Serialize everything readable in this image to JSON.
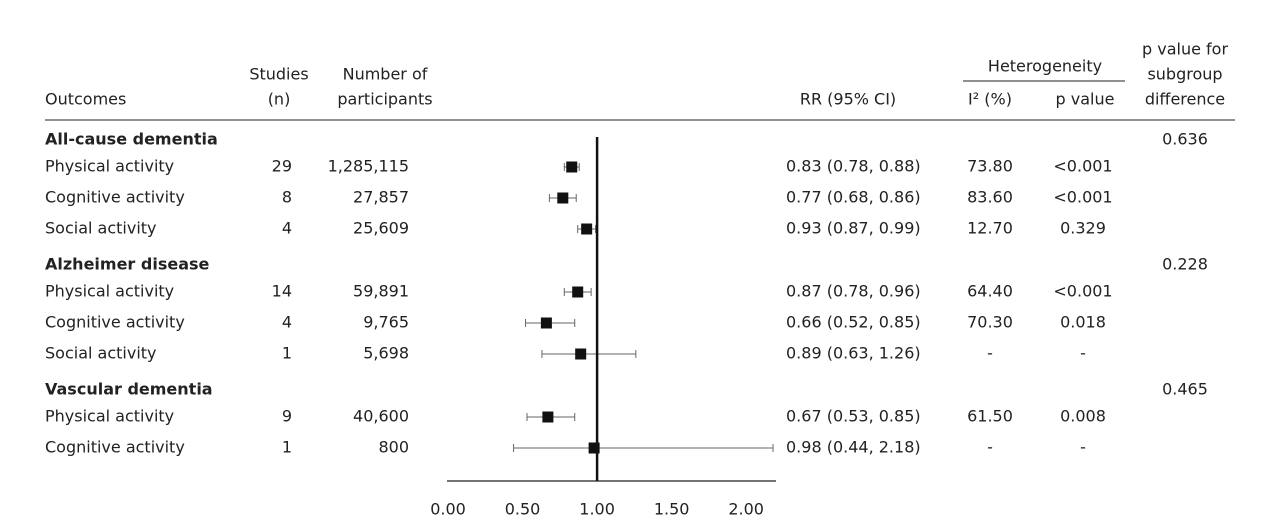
{
  "chart_data": {
    "type": "forest",
    "headers": {
      "outcomes": "Outcomes",
      "studies": [
        "Studies",
        "(n)"
      ],
      "participants": [
        "Number of",
        "participants"
      ],
      "rr": "RR (95% CI)",
      "heterogeneity": "Heterogeneity",
      "i2": "I² (%)",
      "p": "p value",
      "subgroup": [
        "p value for",
        "subgroup",
        "difference"
      ]
    },
    "groups": [
      {
        "name": "All-cause dementia",
        "p_subgroup": "0.636",
        "rows": [
          {
            "label": "Physical activity",
            "studies": 29,
            "participants": "1,285,115",
            "rr": 0.83,
            "ci": [
              0.78,
              0.88
            ],
            "rr_label": "0.83 (0.78, 0.88)",
            "i2": "73.80",
            "p": "<0.001"
          },
          {
            "label": "Cognitive activity",
            "studies": 8,
            "participants": "27,857",
            "rr": 0.77,
            "ci": [
              0.68,
              0.86
            ],
            "rr_label": "0.77 (0.68, 0.86)",
            "i2": "83.60",
            "p": "<0.001"
          },
          {
            "label": "Social activity",
            "studies": 4,
            "participants": "25,609",
            "rr": 0.93,
            "ci": [
              0.87,
              0.99
            ],
            "rr_label": "0.93 (0.87, 0.99)",
            "i2": "12.70",
            "p": "0.329"
          }
        ]
      },
      {
        "name": "Alzheimer disease",
        "p_subgroup": "0.228",
        "rows": [
          {
            "label": "Physical activity",
            "studies": 14,
            "participants": "59,891",
            "rr": 0.87,
            "ci": [
              0.78,
              0.96
            ],
            "rr_label": "0.87 (0.78, 0.96)",
            "i2": "64.40",
            "p": "<0.001"
          },
          {
            "label": "Cognitive activity",
            "studies": 4,
            "participants": "9,765",
            "rr": 0.66,
            "ci": [
              0.52,
              0.85
            ],
            "rr_label": "0.66 (0.52, 0.85)",
            "i2": "70.30",
            "p": "0.018"
          },
          {
            "label": "Social activity",
            "studies": 1,
            "participants": "5,698",
            "rr": 0.89,
            "ci": [
              0.63,
              1.26
            ],
            "rr_label": "0.89 (0.63, 1.26)",
            "i2": "-",
            "p": "-"
          }
        ]
      },
      {
        "name": "Vascular dementia",
        "p_subgroup": "0.465",
        "rows": [
          {
            "label": "Physical activity",
            "studies": 9,
            "participants": "40,600",
            "rr": 0.67,
            "ci": [
              0.53,
              0.85
            ],
            "rr_label": "0.67 (0.53, 0.85)",
            "i2": "61.50",
            "p": "0.008"
          },
          {
            "label": "Cognitive activity",
            "studies": 1,
            "participants": "800",
            "rr": 0.98,
            "ci": [
              0.44,
              2.18
            ],
            "rr_label": "0.98 (0.44, 2.18)",
            "i2": "-",
            "p": "-"
          }
        ]
      }
    ],
    "xlim": [
      0,
      2.2
    ],
    "xticks": [
      {
        "value": 0,
        "label": "0.00"
      },
      {
        "value": 0.5,
        "label": "0.50"
      },
      {
        "value": 1,
        "label": "1.00"
      },
      {
        "value": 1.5,
        "label": "1.50"
      },
      {
        "value": 2,
        "label": "2.00"
      }
    ]
  }
}
